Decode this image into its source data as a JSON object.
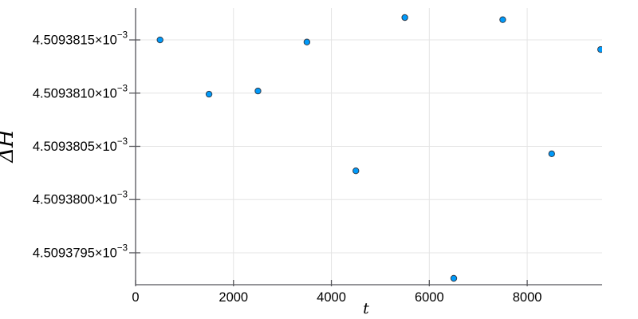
{
  "figure": {
    "background": "#ffffff",
    "kind": "scatter-plot-julia-style"
  },
  "chart_data": {
    "type": "scatter",
    "title": "",
    "xlabel": "t",
    "ylabel": "ΔH",
    "legend": "none",
    "grid": true,
    "x": [
      500,
      1500,
      2500,
      3500,
      4500,
      5500,
      6500,
      7500,
      8500,
      9500
    ],
    "y": [
      0.0045093815,
      0.00450938099,
      0.00450938102,
      0.00450938148,
      0.00450938027,
      0.00450938171,
      0.00450937926,
      0.00450938169,
      0.00450938043,
      0.00450938141
    ],
    "xlim": [
      0,
      9530
    ],
    "ylim": [
      0.0045093792,
      0.0045093818
    ],
    "x_ticks": [
      {
        "value": 0,
        "label": "0"
      },
      {
        "value": 2000,
        "label": "2000"
      },
      {
        "value": 4000,
        "label": "4000"
      },
      {
        "value": 6000,
        "label": "6000"
      },
      {
        "value": 8000,
        "label": "8000"
      }
    ],
    "y_ticks": [
      {
        "value": 0.0045093815,
        "mantissa": "4.5093815×10",
        "exponent": "−3"
      },
      {
        "value": 0.004509381,
        "mantissa": "4.5093810×10",
        "exponent": "−3"
      },
      {
        "value": 0.0045093805,
        "mantissa": "4.5093805×10",
        "exponent": "−3"
      },
      {
        "value": 0.00450938,
        "mantissa": "4.5093800×10",
        "exponent": "−3"
      },
      {
        "value": 0.0045093795,
        "mantissa": "4.5093795×10",
        "exponent": "−3"
      }
    ],
    "colors": {
      "marker_fill": "#009afa",
      "marker_stroke": "#26262e",
      "grid": "#e4e4e4",
      "axis": "#55555a",
      "text": "#000000"
    }
  }
}
